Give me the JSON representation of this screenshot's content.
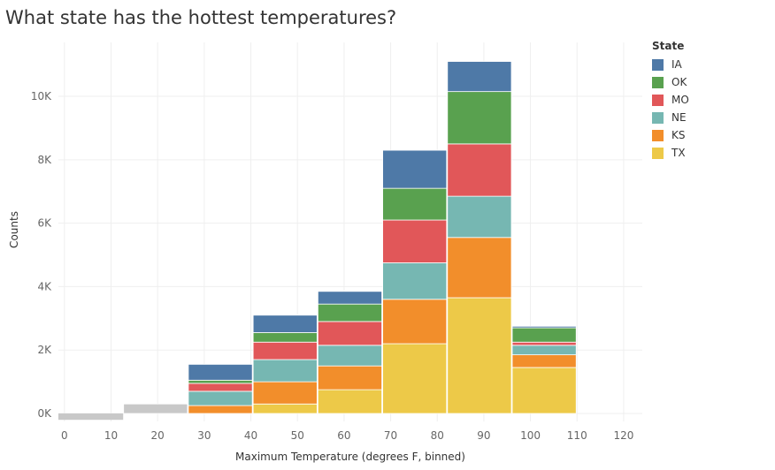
{
  "title": "What state has the hottest temperatures?",
  "chart_data": {
    "type": "bar",
    "stacked": true,
    "title": "What state has the hottest temperatures?",
    "xlabel": "Maximum Temperature (degrees F, binned)",
    "ylabel": "Counts",
    "bins": [
      [
        -1.3,
        12.6
      ],
      [
        12.6,
        26.5
      ],
      [
        26.5,
        40.4
      ],
      [
        40.4,
        54.3
      ],
      [
        54.3,
        68.2
      ],
      [
        68.2,
        82.1
      ],
      [
        82.1,
        96.0
      ],
      [
        96.0,
        109.9
      ],
      [
        109.9,
        123.8
      ]
    ],
    "xlim": [
      -1.3,
      124
    ],
    "ylim": [
      -250,
      11700
    ],
    "xticks": [
      0,
      10,
      20,
      30,
      40,
      50,
      60,
      70,
      80,
      90,
      100,
      110,
      120
    ],
    "xtick_labels": [
      "0",
      "10",
      "20",
      "30",
      "40",
      "50",
      "60",
      "70",
      "80",
      "90",
      "100",
      "110",
      "120"
    ],
    "yticks": [
      0,
      2000,
      4000,
      6000,
      8000,
      10000
    ],
    "ytick_labels": [
      "0K",
      "2K",
      "4K",
      "6K",
      "8K",
      "10K"
    ],
    "grid": true,
    "legend_title": "State",
    "legend_position": "right",
    "series": [
      {
        "name": "TX",
        "color": "#EDC948",
        "values": [
          0,
          0,
          0,
          300,
          750,
          2200,
          3650,
          1450,
          0
        ]
      },
      {
        "name": "KS",
        "color": "#F28E2B",
        "values": [
          0,
          0,
          250,
          700,
          750,
          1400,
          1900,
          400,
          0
        ]
      },
      {
        "name": "NE",
        "color": "#76B7B2",
        "values": [
          0,
          0,
          450,
          700,
          650,
          1150,
          1300,
          300,
          0
        ]
      },
      {
        "name": "MO",
        "color": "#E15759",
        "values": [
          0,
          0,
          250,
          550,
          750,
          1350,
          1650,
          100,
          0
        ]
      },
      {
        "name": "OK",
        "color": "#59A14F",
        "values": [
          0,
          0,
          100,
          300,
          550,
          1000,
          1650,
          450,
          0
        ]
      },
      {
        "name": "IA",
        "color": "#4E79A7",
        "values": [
          0,
          0,
          500,
          550,
          400,
          1200,
          950,
          50,
          0
        ]
      }
    ],
    "residual": {
      "color": "#C8C8C8",
      "values": [
        -200,
        300,
        0,
        0,
        0,
        0,
        0,
        0,
        0
      ]
    }
  }
}
